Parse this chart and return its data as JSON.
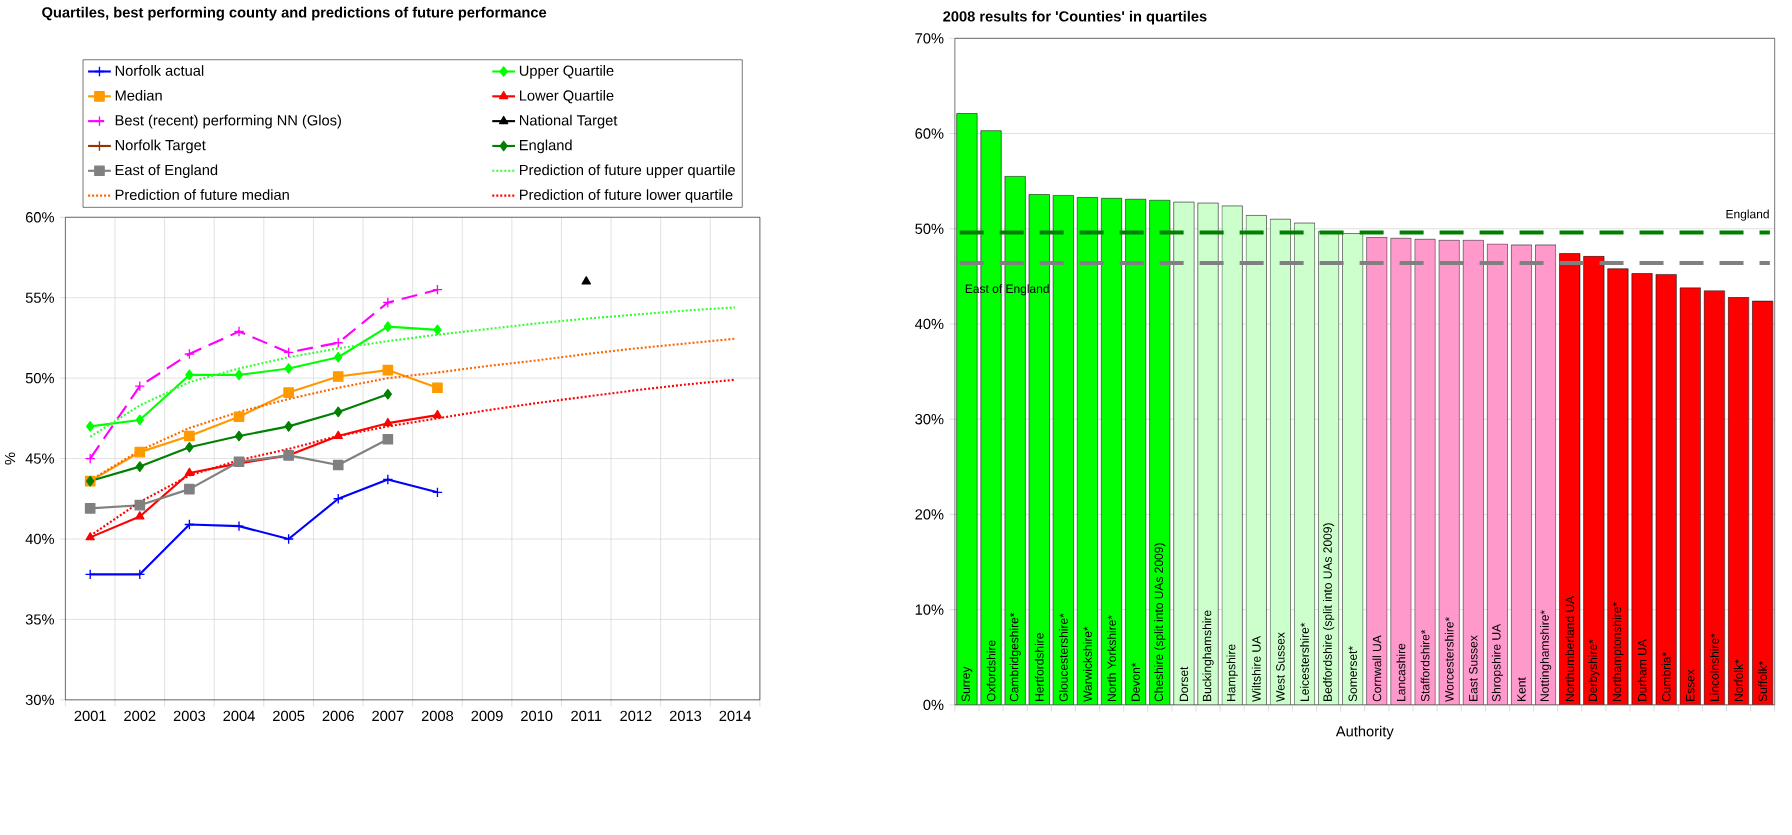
{
  "chart_data": [
    {
      "type": "line",
      "title": "Quartiles, best performing county and predictions of future performance",
      "ylabel": "%",
      "categories": [
        "2001",
        "2002",
        "2003",
        "2004",
        "2005",
        "2006",
        "2007",
        "2008",
        "2009",
        "2010",
        "2011",
        "2012",
        "2013",
        "2014"
      ],
      "ylim": [
        30,
        60
      ],
      "yticks": [
        {
          "value": 30,
          "label": "30%"
        },
        {
          "value": 35,
          "label": "35%"
        },
        {
          "value": 40,
          "label": "40%"
        },
        {
          "value": 45,
          "label": "45%"
        },
        {
          "value": 50,
          "label": "50%"
        },
        {
          "value": 55,
          "label": "55%"
        },
        {
          "value": 60,
          "label": "60%"
        }
      ],
      "grid": true,
      "legend": "top",
      "series": [
        {
          "name": "Norfolk actual",
          "color": "#0000ff",
          "marker": "cross",
          "line_style": "solid",
          "values": [
            37.8,
            37.8,
            40.9,
            40.8,
            40.0,
            42.5,
            43.7,
            42.9,
            null,
            null,
            null,
            null,
            null,
            null
          ]
        },
        {
          "name": "Upper Quartile",
          "color": "#00ff00",
          "marker": "diamond",
          "line_style": "solid",
          "values": [
            47.0,
            47.4,
            50.2,
            50.2,
            50.6,
            51.3,
            53.2,
            53.0,
            null,
            null,
            null,
            null,
            null,
            null
          ]
        },
        {
          "name": "Median",
          "color": "#ff9900",
          "marker": "square",
          "line_style": "solid",
          "values": [
            43.6,
            45.4,
            46.4,
            47.6,
            49.1,
            50.1,
            50.5,
            49.4,
            null,
            null,
            null,
            null,
            null,
            null
          ]
        },
        {
          "name": "Lower Quartile",
          "color": "#ff0000",
          "marker": "triangle",
          "line_style": "solid",
          "values": [
            40.1,
            41.4,
            44.1,
            44.7,
            45.2,
            46.4,
            47.2,
            47.7,
            null,
            null,
            null,
            null,
            null,
            null
          ]
        },
        {
          "name": "Best (recent) performing NN (Glos)",
          "color": "#ff00ff",
          "marker": "cross",
          "line_style": "dashed",
          "values": [
            45.0,
            49.5,
            51.5,
            52.9,
            51.6,
            52.2,
            54.7,
            55.5,
            null,
            null,
            null,
            null,
            null,
            null
          ]
        },
        {
          "name": "National Target",
          "color": "#000000",
          "marker": "triangle",
          "line_style": "solid",
          "values": [
            null,
            null,
            null,
            null,
            null,
            null,
            null,
            null,
            null,
            null,
            56.0,
            null,
            null,
            null
          ]
        },
        {
          "name": "Norfolk Target",
          "color": "#993300",
          "marker": "cross",
          "line_style": "solid",
          "values": [
            null,
            null,
            null,
            null,
            null,
            null,
            null,
            null,
            null,
            null,
            null,
            null,
            null,
            null
          ]
        },
        {
          "name": "England",
          "color": "#008000",
          "marker": "diamond",
          "line_style": "solid",
          "values": [
            43.6,
            44.5,
            45.7,
            46.4,
            47.0,
            47.9,
            49.0,
            null,
            null,
            null,
            null,
            null,
            null,
            null
          ]
        },
        {
          "name": "East of England",
          "color": "#808080",
          "marker": "square",
          "line_style": "solid",
          "values": [
            41.9,
            42.1,
            43.1,
            44.8,
            45.2,
            44.6,
            46.2,
            null,
            null,
            null,
            null,
            null,
            null,
            null
          ]
        },
        {
          "name": "Prediction of future upper quartile",
          "color": "#33ff33",
          "marker": "none",
          "line_style": "dotted",
          "values": [
            46.35,
            48.3,
            49.75,
            50.6,
            51.3,
            51.85,
            52.3,
            52.7,
            53.05,
            53.4,
            53.7,
            53.95,
            54.2,
            54.4
          ]
        },
        {
          "name": "Prediction of future median",
          "color": "#ff6600",
          "marker": "none",
          "line_style": "dotted",
          "values": [
            43.65,
            45.5,
            46.9,
            47.9,
            48.7,
            49.4,
            50.0,
            50.35,
            50.75,
            51.1,
            51.5,
            51.85,
            52.15,
            52.45
          ]
        },
        {
          "name": "Prediction of future lower quartile",
          "color": "#ff0000",
          "marker": "none",
          "line_style": "dotted",
          "values": [
            40.2,
            42.3,
            43.95,
            44.9,
            45.6,
            46.4,
            47.0,
            47.5,
            48.0,
            48.45,
            48.85,
            49.25,
            49.6,
            49.9
          ]
        }
      ]
    },
    {
      "type": "bar",
      "title": "2008 results for 'Counties' in quartiles",
      "xlabel": "Authority",
      "categories": [
        "Surrey",
        "Oxfordshire",
        "Cambridgeshire*",
        "Hertfordshire",
        "Gloucestershire*",
        "Warwickshire*",
        "North Yorkshire*",
        "Devon*",
        "Cheshire (split into UAs 2009)",
        "Dorset",
        "Buckinghamshire",
        "Hampshire",
        "Wiltshire UA",
        "West Sussex",
        "Leicestershire*",
        "Bedfordshire (split into UAs 2009)",
        "Somerset*",
        "Cornwall UA",
        "Lancashire",
        "Staffordshire*",
        "Worcestershire*",
        "East Sussex",
        "Shropshire UA",
        "Kent",
        "Nottinghamshire*",
        "Northumberland UA",
        "Derbyshire*",
        "Northamptonshire*",
        "Durham UA",
        "Cumbria*",
        "Essex",
        "Lincolnshire*",
        "Norfolk*",
        "Suffolk*"
      ],
      "values": [
        62.1,
        60.3,
        55.5,
        53.6,
        53.5,
        53.3,
        53.2,
        53.1,
        53.0,
        52.8,
        52.7,
        52.4,
        51.4,
        51.0,
        50.6,
        49.7,
        49.5,
        49.1,
        49.0,
        48.9,
        48.8,
        48.8,
        48.4,
        48.3,
        48.3,
        47.4,
        47.1,
        45.8,
        45.3,
        45.2,
        43.8,
        43.5,
        42.8,
        42.4
      ],
      "colors": [
        "#00ff00",
        "#00ff00",
        "#00ff00",
        "#00ff00",
        "#00ff00",
        "#00ff00",
        "#00ff00",
        "#00ff00",
        "#00ff00",
        "#ccffcc",
        "#ccffcc",
        "#ccffcc",
        "#ccffcc",
        "#ccffcc",
        "#ccffcc",
        "#ccffcc",
        "#ccffcc",
        "#ff99cc",
        "#ff99cc",
        "#ff99cc",
        "#ff99cc",
        "#ff99cc",
        "#ff99cc",
        "#ff99cc",
        "#ff99cc",
        "#ff0000",
        "#ff0000",
        "#ff0000",
        "#ff0000",
        "#ff0000",
        "#ff0000",
        "#ff0000",
        "#ff0000",
        "#ff0000"
      ],
      "ylim": [
        0,
        70
      ],
      "yticks": [
        {
          "value": 0,
          "label": "0%"
        },
        {
          "value": 10,
          "label": "10%"
        },
        {
          "value": 20,
          "label": "20%"
        },
        {
          "value": 30,
          "label": "30%"
        },
        {
          "value": 40,
          "label": "40%"
        },
        {
          "value": 50,
          "label": "50%"
        },
        {
          "value": 60,
          "label": "60%"
        },
        {
          "value": 70,
          "label": "70%"
        }
      ],
      "grid": "y",
      "ref_lines": [
        {
          "axis": "y",
          "value": 49.6,
          "label": "England",
          "color": "#008000",
          "line_style": "dashed"
        },
        {
          "axis": "y",
          "value": 46.4,
          "label": "East of England",
          "color": "#808080",
          "line_style": "dashed"
        }
      ]
    }
  ]
}
